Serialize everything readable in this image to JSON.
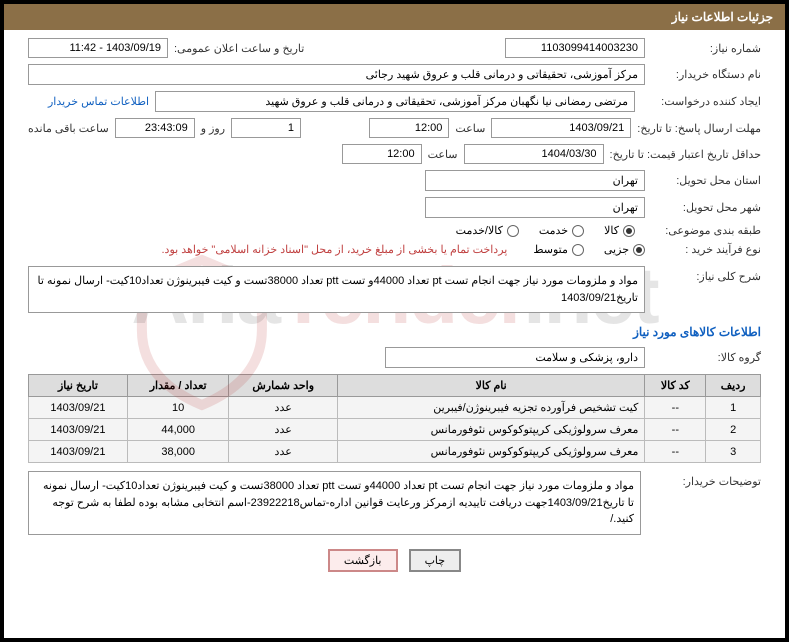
{
  "header": {
    "title": "جزئیات اطلاعات نیاز"
  },
  "labels": {
    "need_number": "شماره نیاز:",
    "announce_datetime": "تاریخ و ساعت اعلان عمومی:",
    "buyer_org": "نام دستگاه خریدار:",
    "requester": "ایجاد کننده درخواست:",
    "response_deadline": "مهلت ارسال پاسخ: تا تاریخ:",
    "price_validity": "حداقل تاریخ اعتبار قیمت: تا تاریخ:",
    "hour": "ساعت",
    "days_and": "روز و",
    "remaining": "ساعت باقی مانده",
    "delivery_province": "استان محل تحویل:",
    "delivery_city": "شهر محل تحویل:",
    "subject_class": "طبقه بندی موضوعی:",
    "purchase_type": "نوع فرآیند خرید :",
    "general_desc": "شرح کلی نیاز:",
    "goods_info": "اطلاعات کالاهای مورد نیاز",
    "goods_group": "گروه کالا:",
    "buyer_notes": "توضیحات خریدار:"
  },
  "fields": {
    "need_number": "1103099414003230",
    "announce_datetime": "1403/09/19 - 11:42",
    "buyer_org": "مرکز آموزشی، تحقیقاتی و درمانی قلب و عروق شهید رجائی",
    "requester": "مرتضی رمضانی نیا نگهبان مرکز آموزشی، تحقیقاتی و درمانی قلب و عروق شهید",
    "response_date": "1403/09/21",
    "response_hour": "12:00",
    "days_left": "1",
    "countdown": "23:43:09",
    "validity_date": "1404/03/30",
    "validity_hour": "12:00",
    "delivery_province": "تهران",
    "delivery_city": "تهران",
    "general_desc": "مواد و ملزومات مورد نیاز جهت انجام تست pt تعداد 44000و تست ptt تعداد 38000تست و کیت فیبرینوژن تعداد10کیت- ارسال نمونه تا تاریخ1403/09/21",
    "goods_group": "دارو، پزشکی و سلامت",
    "buyer_notes": "مواد و ملزومات مورد نیاز جهت انجام تست pt تعداد 44000و تست ptt تعداد 38000تست و کیت فیبرینوژن تعداد10کیت- ارسال نمونه تا تاریخ1403/09/21جهت دریافت تاییدیه ازمرکز ورعایت قوانین اداره-تماس23922218-اسم انتخابی مشابه بوده لطفا به شرح توجه کنید./"
  },
  "links": {
    "buyer_contact": "اطلاعات تماس خریدار"
  },
  "radios": {
    "goods": "کالا",
    "service": "خدمت",
    "goods_service": "کالا/خدمت",
    "partial": "جزیی",
    "medium": "متوسط"
  },
  "notes": {
    "payment": "پرداخت تمام یا بخشی از مبلغ خرید، از محل \"اسناد خزانه اسلامی\" خواهد بود."
  },
  "table": {
    "headers": [
      "ردیف",
      "کد کالا",
      "نام کالا",
      "واحد شمارش",
      "تعداد / مقدار",
      "تاریخ نیاز"
    ],
    "rows": [
      [
        "1",
        "--",
        "کیت تشخیص فرآورده تجزیه فیبرینوژن/فیبرین",
        "عدد",
        "10",
        "1403/09/21"
      ],
      [
        "2",
        "--",
        "معرف سرولوژیکی کریپتوکوکوس نئوفورمانس",
        "عدد",
        "44,000",
        "1403/09/21"
      ],
      [
        "3",
        "--",
        "معرف سرولوژیکی کریپتوکوکوس نئوفورمانس",
        "عدد",
        "38,000",
        "1403/09/21"
      ]
    ]
  },
  "buttons": {
    "print": "چاپ",
    "back": "بازگشت"
  },
  "colors": {
    "header_bg": "#8b6f47",
    "link": "#1060c0",
    "note": "#c04040",
    "th_bg": "#dddddd",
    "td_bg": "#f4f4f4",
    "border": "#999999"
  }
}
